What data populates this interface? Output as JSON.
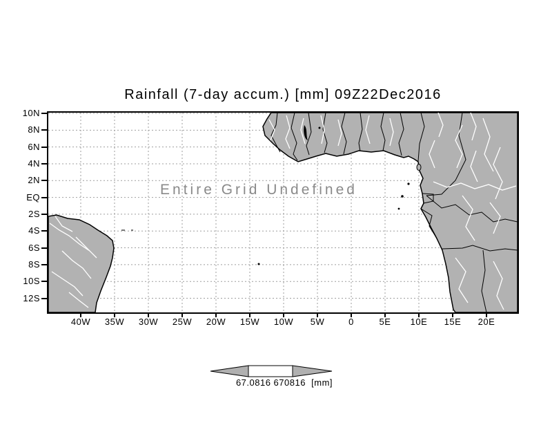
{
  "chart_data": {
    "type": "heatmap",
    "title": "Rainfall (7-day accum.) [mm] 09Z22Dec2016",
    "annotation": "Entire Grid Undefined",
    "no_data": true,
    "x_tick_labels": [
      "40W",
      "35W",
      "30W",
      "25W",
      "20W",
      "15W",
      "10W",
      "5W",
      "0",
      "5E",
      "10E",
      "15E",
      "20E"
    ],
    "y_tick_labels": [
      "10N",
      "8N",
      "6N",
      "4N",
      "2N",
      "EQ",
      "2S",
      "4S",
      "6S",
      "8S",
      "10S",
      "12S"
    ],
    "x_range_deg": [
      -45,
      24
    ],
    "y_range_deg": [
      -13.8,
      10.2
    ],
    "grid": "dotted",
    "legend_position": "bottom",
    "colorbar": {
      "tick_labels": [
        "67.0816",
        "670816"
      ],
      "units": "[mm]",
      "label": "67.0816 670816  [mm]",
      "fill_color": "#b0b0b0"
    }
  },
  "colors": {
    "land": "#b2b2b2",
    "coast_border": "#000000",
    "river": "#ffffff",
    "gridline": "#9e9e9e",
    "message_text": "#8a8a8a",
    "background": "#ffffff"
  }
}
